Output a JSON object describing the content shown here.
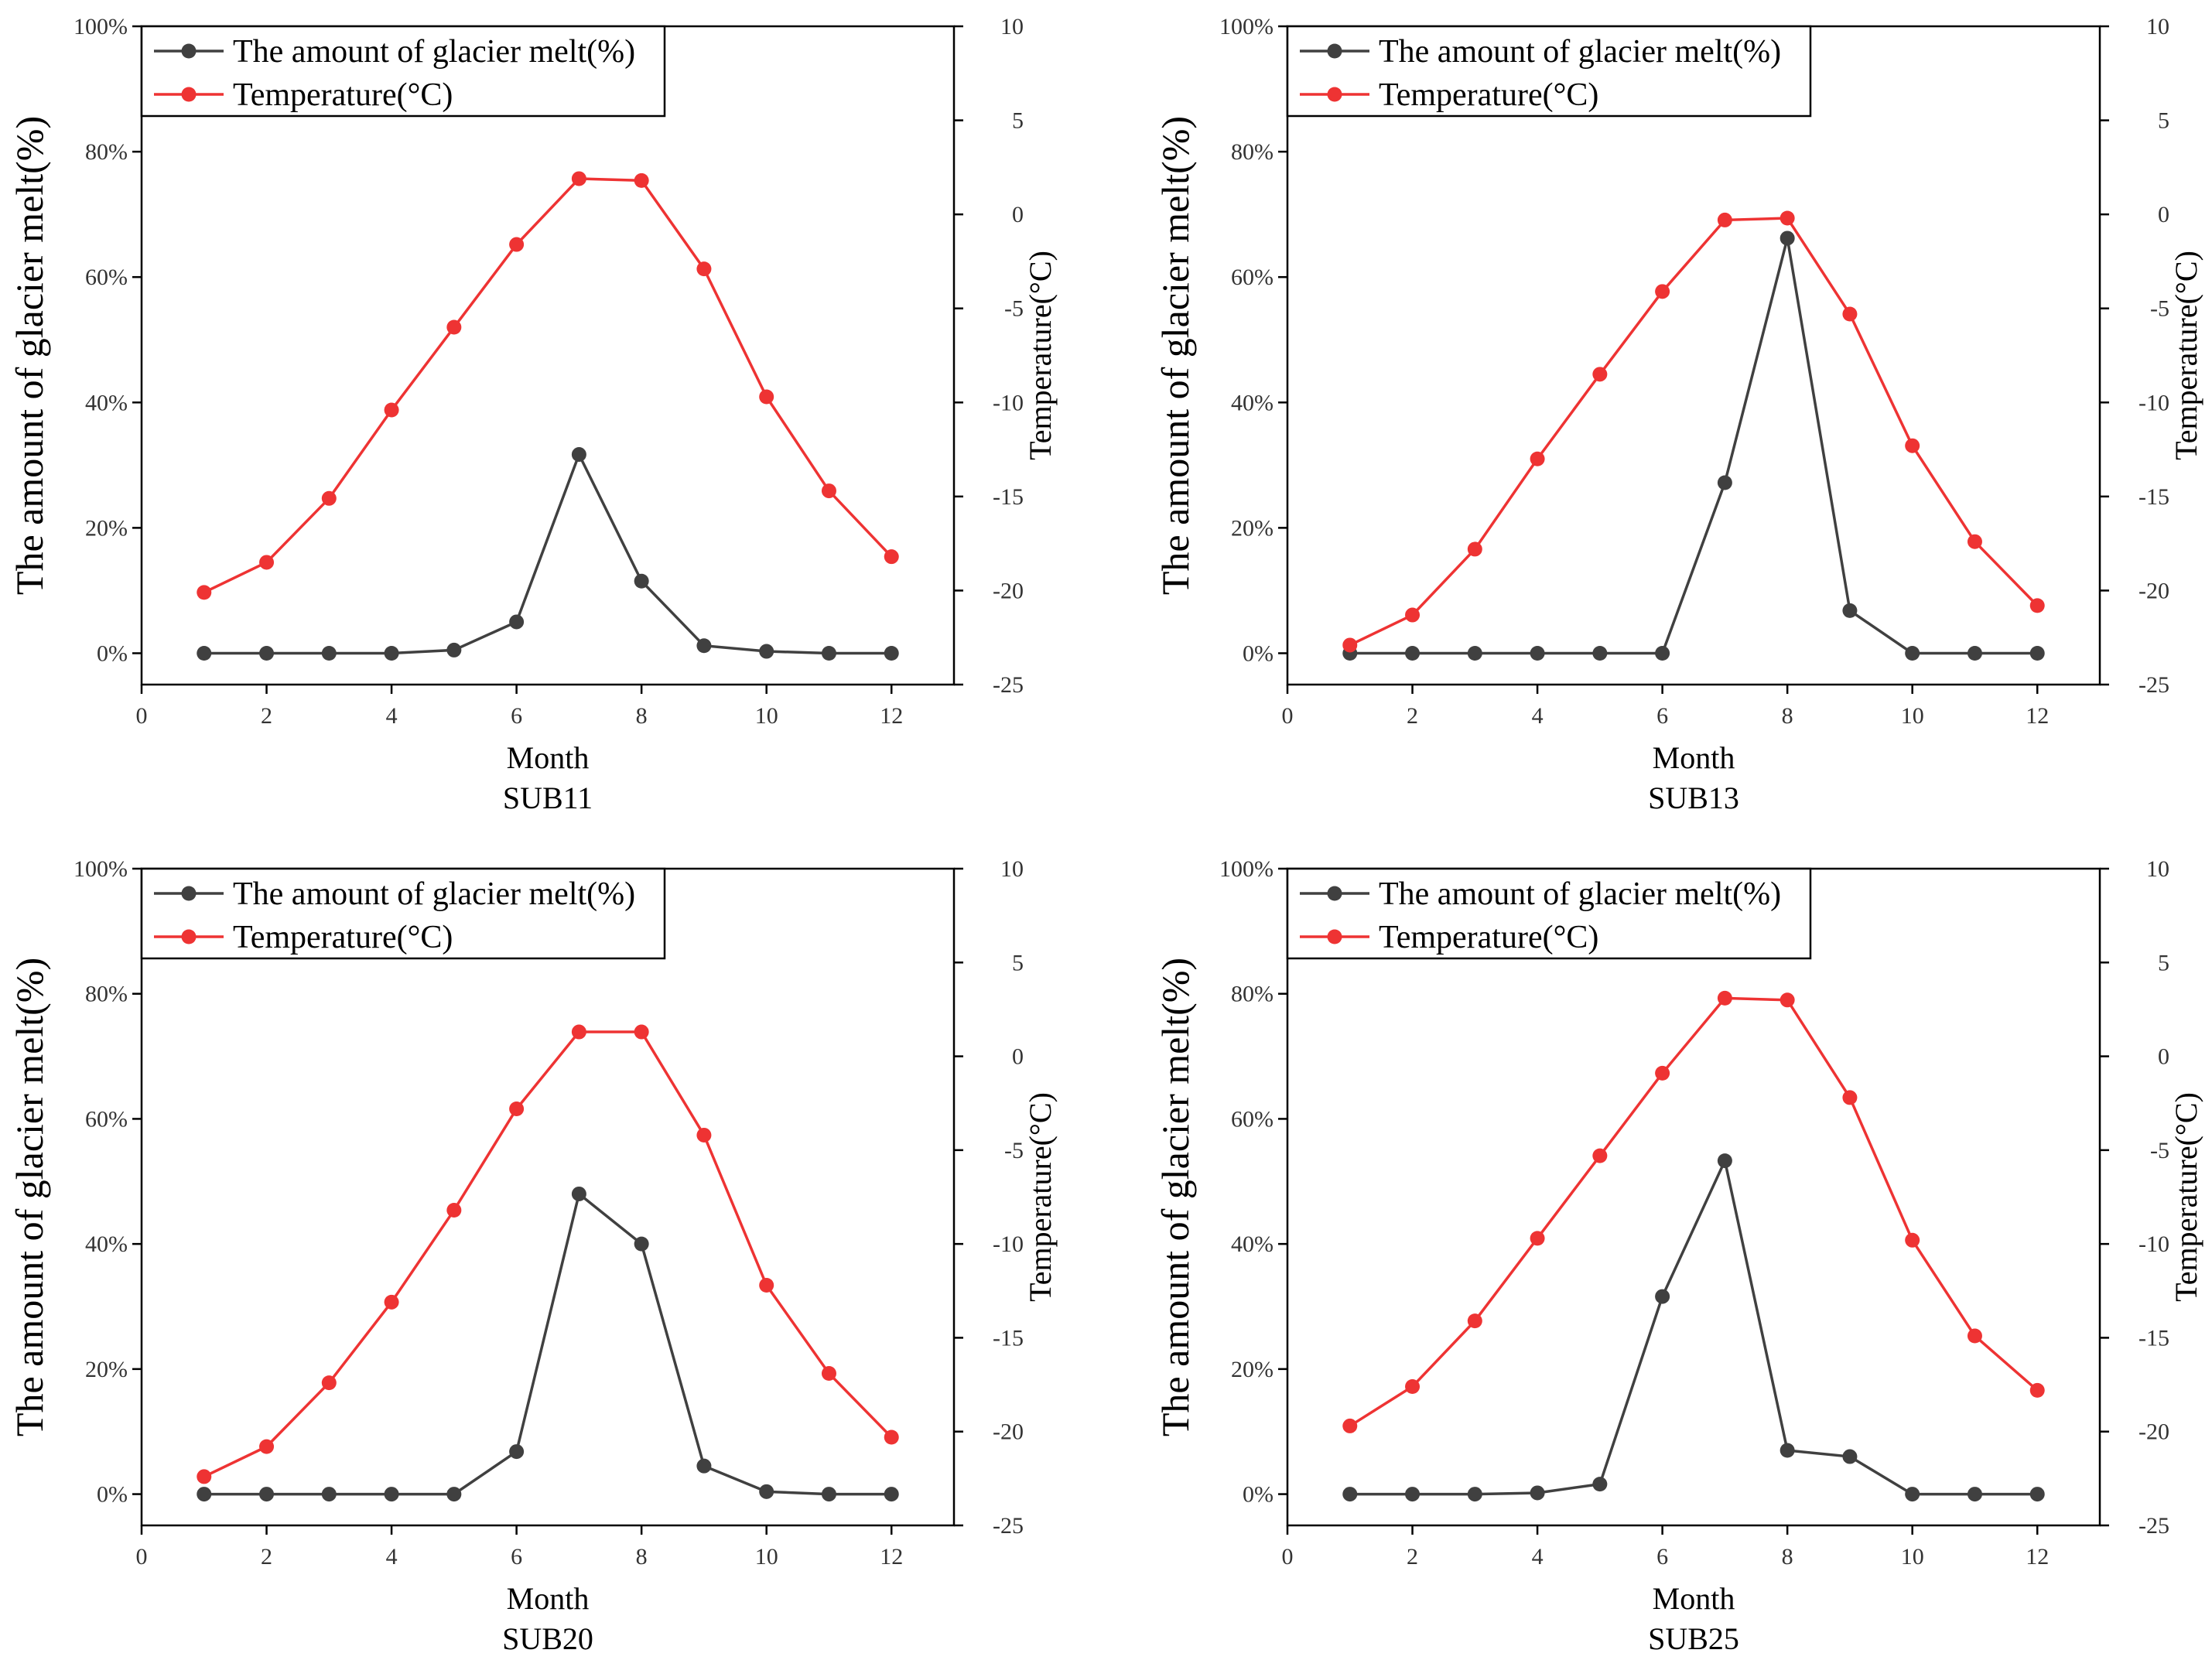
{
  "colors": {
    "melt": "#404040",
    "temperature": "#ee3333",
    "axis": "#000000"
  },
  "chart_data": [
    {
      "type": "line",
      "subtitle": "SUB11",
      "xlabel": "Month",
      "ylabel_left": "The amount of glacier melt(%)",
      "ylabel_right": "Temperature(°C)",
      "xlim": [
        0,
        13
      ],
      "xticks": [
        "0",
        "2",
        "4",
        "6",
        "8",
        "10",
        "12"
      ],
      "ylim_left": [
        -0.05,
        1.0
      ],
      "yticks_left": [
        "0%",
        "20%",
        "40%",
        "60%",
        "80%",
        "100%"
      ],
      "ylim_right": [
        -25,
        10
      ],
      "yticks_right": [
        "-25",
        "-20",
        "-15",
        "-10",
        "-5",
        "0",
        "5",
        "10"
      ],
      "legend_position": "top-left",
      "x": [
        1,
        2,
        3,
        4,
        5,
        6,
        7,
        8,
        9,
        10,
        11,
        12
      ],
      "series": [
        {
          "name": "The amount of glacier melt(%)",
          "axis": "left",
          "values": [
            0.0,
            0.0,
            0.0,
            0.0,
            0.005,
            0.05,
            0.317,
            0.115,
            0.012,
            0.003,
            0.0,
            0.0
          ]
        },
        {
          "name": "Temperature(°C)",
          "axis": "right",
          "values": [
            -20.1,
            -18.5,
            -15.1,
            -10.4,
            -6.0,
            -1.6,
            1.9,
            1.8,
            -2.9,
            -9.7,
            -14.7,
            -18.2
          ]
        }
      ]
    },
    {
      "type": "line",
      "subtitle": "SUB13",
      "xlabel": "Month",
      "ylabel_left": "The amount of glacier melt(%)",
      "ylabel_right": "Temperature(°C)",
      "xlim": [
        0,
        13
      ],
      "xticks": [
        "0",
        "2",
        "4",
        "6",
        "8",
        "10",
        "12"
      ],
      "ylim_left": [
        -0.05,
        1.0
      ],
      "yticks_left": [
        "0%",
        "20%",
        "40%",
        "60%",
        "80%",
        "100%"
      ],
      "ylim_right": [
        -25,
        10
      ],
      "yticks_right": [
        "-25",
        "-20",
        "-15",
        "-10",
        "-5",
        "0",
        "5",
        "10"
      ],
      "legend_position": "top-left",
      "x": [
        1,
        2,
        3,
        4,
        5,
        6,
        7,
        8,
        9,
        10,
        11,
        12
      ],
      "series": [
        {
          "name": "The amount of glacier melt(%)",
          "axis": "left",
          "values": [
            0.0,
            0.0,
            0.0,
            0.0,
            0.0,
            0.0,
            0.272,
            0.662,
            0.068,
            0.0,
            0.0,
            0.0
          ]
        },
        {
          "name": "Temperature(°C)",
          "axis": "right",
          "values": [
            -22.9,
            -21.3,
            -17.8,
            -13.0,
            -8.5,
            -4.1,
            -0.3,
            -0.2,
            -5.3,
            -12.3,
            -17.4,
            -20.8
          ]
        }
      ]
    },
    {
      "type": "line",
      "subtitle": "SUB20",
      "xlabel": "Month",
      "ylabel_left": "The amount of glacier melt(%)",
      "ylabel_right": "Temperature(°C)",
      "xlim": [
        0,
        13
      ],
      "xticks": [
        "0",
        "2",
        "4",
        "6",
        "8",
        "10",
        "12"
      ],
      "ylim_left": [
        -0.05,
        1.0
      ],
      "yticks_left": [
        "0%",
        "20%",
        "40%",
        "60%",
        "80%",
        "100%"
      ],
      "ylim_right": [
        -25,
        10
      ],
      "yticks_right": [
        "-25",
        "-20",
        "-15",
        "-10",
        "-5",
        "0",
        "5",
        "10"
      ],
      "legend_position": "top-left",
      "x": [
        1,
        2,
        3,
        4,
        5,
        6,
        7,
        8,
        9,
        10,
        11,
        12
      ],
      "series": [
        {
          "name": "The amount of glacier melt(%)",
          "axis": "left",
          "values": [
            0.0,
            0.0,
            0.0,
            0.0,
            0.0,
            0.068,
            0.48,
            0.4,
            0.045,
            0.004,
            0.0,
            0.0
          ]
        },
        {
          "name": "Temperature(°C)",
          "axis": "right",
          "values": [
            -22.4,
            -20.8,
            -17.4,
            -13.1,
            -8.2,
            -2.8,
            1.3,
            1.3,
            -4.2,
            -12.2,
            -16.9,
            -20.3
          ]
        }
      ]
    },
    {
      "type": "line",
      "subtitle": "SUB25",
      "xlabel": "Month",
      "ylabel_left": "The amount of glacier melt(%)",
      "ylabel_right": "Temperature(°C)",
      "xlim": [
        0,
        13
      ],
      "xticks": [
        "0",
        "2",
        "4",
        "6",
        "8",
        "10",
        "12"
      ],
      "ylim_left": [
        -0.05,
        1.0
      ],
      "yticks_left": [
        "0%",
        "20%",
        "40%",
        "60%",
        "80%",
        "100%"
      ],
      "ylim_right": [
        -25,
        10
      ],
      "yticks_right": [
        "-25",
        "-20",
        "-15",
        "-10",
        "-5",
        "0",
        "5",
        "10"
      ],
      "legend_position": "top-left",
      "x": [
        1,
        2,
        3,
        4,
        5,
        6,
        7,
        8,
        9,
        10,
        11,
        12
      ],
      "series": [
        {
          "name": "The amount of glacier melt(%)",
          "axis": "left",
          "values": [
            0.0,
            0.0,
            0.0,
            0.002,
            0.016,
            0.316,
            0.533,
            0.07,
            0.06,
            0.0,
            0.0,
            0.0
          ]
        },
        {
          "name": "Temperature(°C)",
          "axis": "right",
          "values": [
            -19.7,
            -17.6,
            -14.1,
            -9.7,
            -5.3,
            -0.9,
            3.1,
            3.0,
            -2.2,
            -9.8,
            -14.9,
            -17.8
          ]
        }
      ]
    }
  ]
}
